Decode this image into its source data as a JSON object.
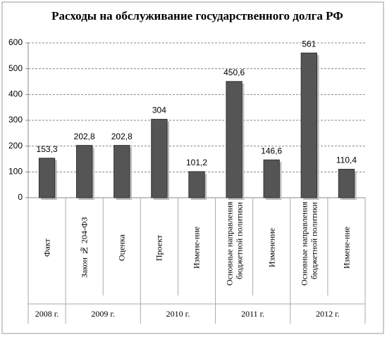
{
  "chart_data": {
    "type": "bar",
    "title": "Расходы на обслуживание государственного долга РФ",
    "categories": [
      "Факт",
      "Закон № 204-ФЗ",
      "Оценка",
      "Проект",
      "Измене-ние",
      "Основные направления бюджетной политики",
      "Изменение",
      "Основные направления бюджетной политики",
      "Измене-ние"
    ],
    "groups": [
      {
        "label": "2008 г.",
        "span": 1
      },
      {
        "label": "2009 г.",
        "span": 2
      },
      {
        "label": "2010 г.",
        "span": 2
      },
      {
        "label": "2011 г.",
        "span": 2
      },
      {
        "label": "2012 г.",
        "span": 2
      }
    ],
    "values": [
      153.3,
      202.8,
      202.8,
      304,
      101.2,
      450.6,
      146.6,
      561,
      110.4
    ],
    "value_labels": [
      "153,3",
      "202,8",
      "202,8",
      "304",
      "101,2",
      "450,6",
      "146,6",
      "561",
      "110,4"
    ],
    "color": "#555555",
    "ylim": [
      0,
      600
    ],
    "yticks": [
      0,
      100,
      200,
      300,
      400,
      500,
      600
    ],
    "grid": true
  }
}
